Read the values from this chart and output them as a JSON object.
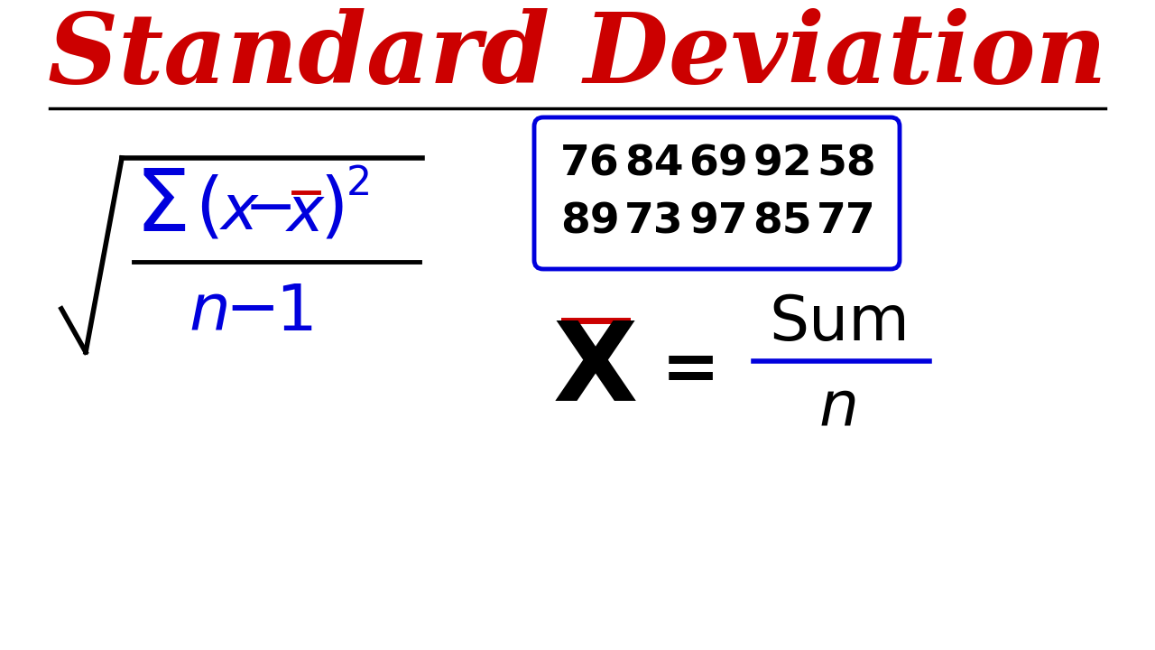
{
  "title": "Standard Deviation",
  "title_color": "#cc0000",
  "title_fontsize": 78,
  "background_color": "#ffffff",
  "line_color": "#000000",
  "data_box": {
    "row1": [
      "76",
      "84",
      "69",
      "92",
      "58"
    ],
    "row2": [
      "89",
      "73",
      "97",
      "85",
      "77"
    ],
    "box_color": "#0000dd",
    "text_color": "#000000",
    "fontsize": 34
  },
  "formula_left": {
    "sigma_color": "#0000dd",
    "text_color": "#0000dd",
    "black_color": "#000000",
    "red_color": "#cc0000"
  },
  "mean_formula": {
    "x_color": "#000000",
    "bar_color": "#cc0000",
    "equals_color": "#000000",
    "sum_color": "#000000",
    "line_color": "#0000dd",
    "n_color": "#000000"
  }
}
